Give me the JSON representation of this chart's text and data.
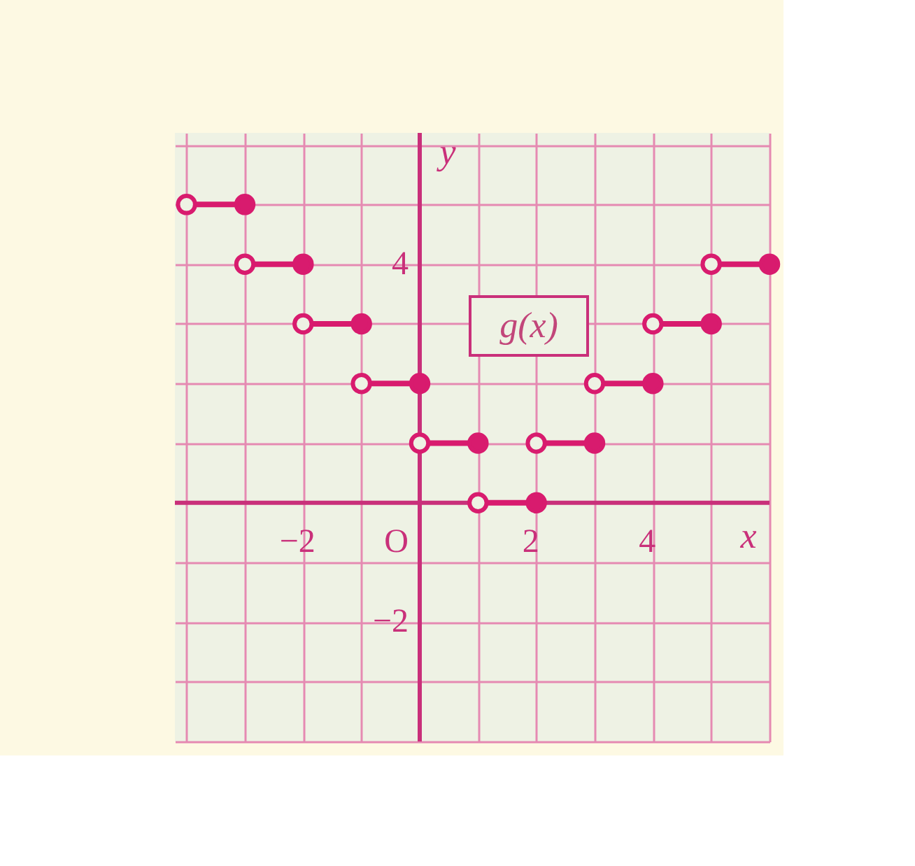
{
  "chart_data": {
    "type": "line",
    "xlabel": "x",
    "ylabel": "y",
    "annotations": [
      "g(x)",
      "O"
    ],
    "xlim": [
      -4.2,
      6
    ],
    "ylim": [
      -4,
      6.2
    ],
    "xticks": [
      {
        "value": -4,
        "label": null
      },
      {
        "value": -3,
        "label": null
      },
      {
        "value": -2,
        "label": "−2"
      },
      {
        "value": -1,
        "label": null
      },
      {
        "value": 0,
        "label": null
      },
      {
        "value": 1,
        "label": null
      },
      {
        "value": 2,
        "label": "2"
      },
      {
        "value": 3,
        "label": null
      },
      {
        "value": 4,
        "label": "4"
      },
      {
        "value": 5,
        "label": null
      },
      {
        "value": 6,
        "label": null
      }
    ],
    "yticks": [
      {
        "value": -4,
        "label": null
      },
      {
        "value": -3,
        "label": null
      },
      {
        "value": -2,
        "label": "−2"
      },
      {
        "value": -1,
        "label": null
      },
      {
        "value": 0,
        "label": null
      },
      {
        "value": 1,
        "label": null
      },
      {
        "value": 2,
        "label": null
      },
      {
        "value": 3,
        "label": null
      },
      {
        "value": 4,
        "label": "4"
      },
      {
        "value": 5,
        "label": null
      },
      {
        "value": 6,
        "label": null
      }
    ],
    "grid": true,
    "marker": "circle",
    "line_style": "solid",
    "series": [
      {
        "color": "#d81b6e",
        "x": [
          -4,
          -3
        ],
        "values": [
          5,
          5
        ]
      },
      {
        "color": "#d81b6e",
        "x": [
          -3,
          -2
        ],
        "values": [
          4,
          4
        ]
      },
      {
        "color": "#d81b6e",
        "x": [
          -2,
          -1
        ],
        "values": [
          3,
          3
        ]
      },
      {
        "color": "#d81b6e",
        "x": [
          -1,
          0
        ],
        "values": [
          2,
          2
        ]
      },
      {
        "color": "#d81b6e",
        "x": [
          0,
          1
        ],
        "values": [
          1,
          1
        ]
      },
      {
        "color": "#d81b6e",
        "x": [
          1,
          2
        ],
        "values": [
          0,
          0
        ]
      },
      {
        "color": "#d81b6e",
        "x": [
          2,
          3
        ],
        "values": [
          1,
          1
        ]
      },
      {
        "color": "#d81b6e",
        "x": [
          3,
          4
        ],
        "values": [
          2,
          2
        ]
      },
      {
        "color": "#d81b6e",
        "x": [
          4,
          5
        ],
        "values": [
          3,
          3
        ]
      },
      {
        "color": "#d81b6e",
        "x": [
          5,
          6
        ],
        "values": [
          4,
          4
        ]
      }
    ]
  }
}
